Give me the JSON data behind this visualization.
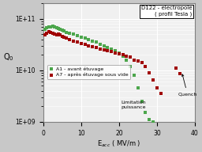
{
  "title_box": "D122 - electropole\n( profil Tesla )",
  "xlabel": "E$_{acc}$ ( MV/m )",
  "ylabel": "Q$_0$",
  "xlim": [
    0,
    40
  ],
  "ylim_log": [
    1000000000.0,
    200000000000.0
  ],
  "yticks": [
    1000000000.0,
    10000000000.0,
    100000000000.0
  ],
  "ytick_labels": [
    "1E+09",
    "1E+10",
    "1E+11"
  ],
  "xticks": [
    0,
    10,
    20,
    30,
    40
  ],
  "annotation1": "Limitation\npuissance",
  "annotation2": "Quench",
  "legend1": "A1 - avant étuvage",
  "legend2": "A7 - après étuvage sous vide",
  "color_green": "#4CA64C",
  "color_red": "#A00000",
  "bg_color": "#F0F0F0",
  "border_color": "#808080",
  "A1_data": [
    [
      0.5,
      62000000000.0
    ],
    [
      1.0,
      68000000000.0
    ],
    [
      1.5,
      70000000000.0
    ],
    [
      2.0,
      70000000000.0
    ],
    [
      2.5,
      71000000000.0
    ],
    [
      3.0,
      69000000000.0
    ],
    [
      3.5,
      67000000000.0
    ],
    [
      4.0,
      64000000000.0
    ],
    [
      4.5,
      63000000000.0
    ],
    [
      5.0,
      60000000000.0
    ],
    [
      5.5,
      58000000000.0
    ],
    [
      6.0,
      55000000000.0
    ],
    [
      7.0,
      52000000000.0
    ],
    [
      8.0,
      50000000000.0
    ],
    [
      9.0,
      47000000000.0
    ],
    [
      10.0,
      44000000000.0
    ],
    [
      11.0,
      42000000000.0
    ],
    [
      12.0,
      39000000000.0
    ],
    [
      13.0,
      37000000000.0
    ],
    [
      14.0,
      35000000000.0
    ],
    [
      15.0,
      32000000000.0
    ],
    [
      16.0,
      30000000000.0
    ],
    [
      17.0,
      28000000000.0
    ],
    [
      18.0,
      26000000000.0
    ],
    [
      19.0,
      24000000000.0
    ],
    [
      20.0,
      22000000000.0
    ],
    [
      21.0,
      19000000000.0
    ],
    [
      22.0,
      16000000000.0
    ],
    [
      23.0,
      12000000000.0
    ],
    [
      24.0,
      8000000000.0
    ],
    [
      25.0,
      4500000000.0
    ],
    [
      26.0,
      2500000000.0
    ],
    [
      27.0,
      1500000000.0
    ],
    [
      28.0,
      1100000000.0
    ],
    [
      29.0,
      1000000000.0
    ]
  ],
  "A7_data": [
    [
      0.5,
      48000000000.0
    ],
    [
      1.0,
      52000000000.0
    ],
    [
      1.5,
      56000000000.0
    ],
    [
      2.0,
      55000000000.0
    ],
    [
      2.5,
      53000000000.0
    ],
    [
      3.0,
      51000000000.0
    ],
    [
      3.5,
      49000000000.0
    ],
    [
      4.0,
      51000000000.0
    ],
    [
      4.5,
      49000000000.0
    ],
    [
      5.0,
      46000000000.0
    ],
    [
      5.5,
      44000000000.0
    ],
    [
      6.0,
      42000000000.0
    ],
    [
      7.0,
      39000000000.0
    ],
    [
      8.0,
      37000000000.0
    ],
    [
      9.0,
      35000000000.0
    ],
    [
      10.0,
      33000000000.0
    ],
    [
      11.0,
      32000000000.0
    ],
    [
      12.0,
      30000000000.0
    ],
    [
      13.0,
      29000000000.0
    ],
    [
      14.0,
      28000000000.0
    ],
    [
      15.0,
      26000000000.0
    ],
    [
      16.0,
      25000000000.0
    ],
    [
      17.0,
      24000000000.0
    ],
    [
      18.0,
      23000000000.0
    ],
    [
      19.0,
      22000000000.0
    ],
    [
      20.0,
      21000000000.0
    ],
    [
      21.0,
      20000000000.0
    ],
    [
      22.0,
      19000000000.0
    ],
    [
      23.0,
      18000000000.0
    ],
    [
      24.0,
      16000000000.0
    ],
    [
      25.0,
      15000000000.0
    ],
    [
      26.0,
      14000000000.0
    ],
    [
      27.0,
      12000000000.0
    ],
    [
      28.0,
      9000000000.0
    ],
    [
      29.0,
      6500000000.0
    ],
    [
      30.0,
      4500000000.0
    ],
    [
      31.0,
      3500000000.0
    ],
    [
      35.0,
      11000000000.0
    ],
    [
      36.0,
      8500000000.0
    ]
  ]
}
